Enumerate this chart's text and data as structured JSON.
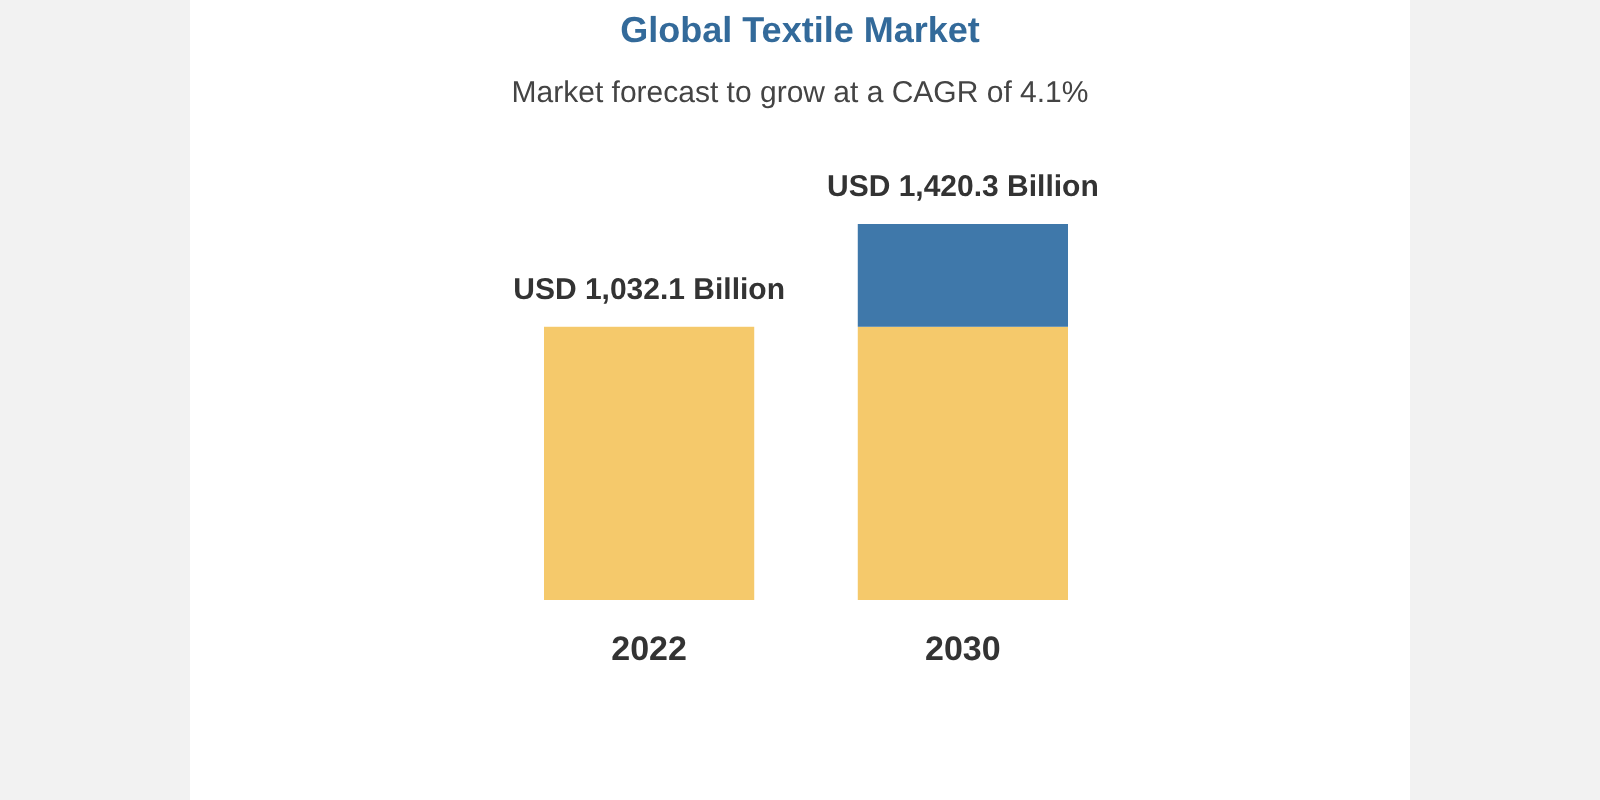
{
  "chart_data": {
    "type": "bar",
    "title": "Global Textile Market",
    "subtitle": "Market forecast to grow at a CAGR of 4.1%",
    "categories": [
      "2022",
      "2030"
    ],
    "stacked": true,
    "tick_labels": "x",
    "series": [
      {
        "color": "#f5c96b",
        "values": [
          1032.1,
          1032.1
        ],
        "value_labels": [
          "USD 1,032.1 Billion",
          null
        ]
      },
      {
        "color": "#3f78aa",
        "values": [
          null,
          388.2
        ]
      }
    ],
    "totals": [
      null,
      "USD 1,420.3 Billion"
    ]
  }
}
